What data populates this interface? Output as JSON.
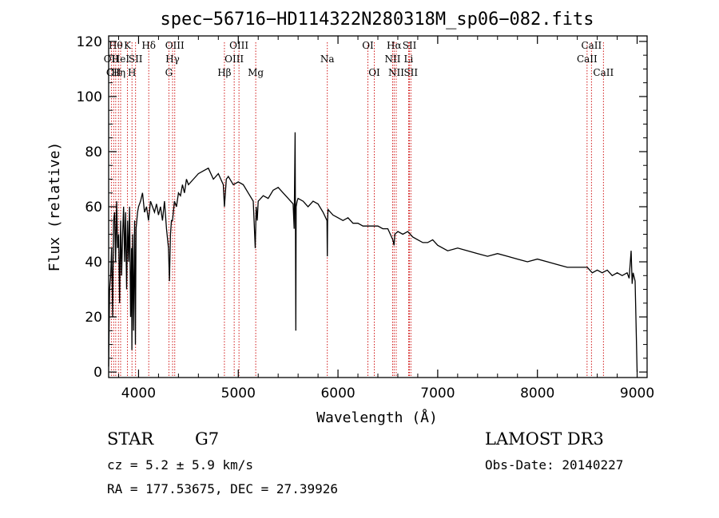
{
  "chart_data": {
    "type": "line",
    "title": "spec−56716−HD114322N280318M_sp06−082.fits",
    "xlabel": "Wavelength (Å)",
    "ylabel": "Flux (relative)",
    "xlim": [
      3700,
      9100
    ],
    "ylim": [
      -2,
      122
    ],
    "xticks": [
      4000,
      5000,
      6000,
      7000,
      8000,
      9000
    ],
    "yticks": [
      0,
      20,
      40,
      60,
      80,
      100,
      120
    ],
    "series": [
      {
        "name": "flux",
        "x": [
          3700,
          3710,
          3720,
          3730,
          3740,
          3750,
          3760,
          3770,
          3780,
          3790,
          3800,
          3810,
          3820,
          3830,
          3840,
          3850,
          3860,
          3870,
          3880,
          3890,
          3900,
          3910,
          3920,
          3930,
          3933,
          3940,
          3950,
          3960,
          3968,
          3975,
          3990,
          4000,
          4020,
          4040,
          4060,
          4080,
          4100,
          4120,
          4140,
          4160,
          4180,
          4200,
          4220,
          4240,
          4260,
          4280,
          4300,
          4310,
          4320,
          4330,
          4340,
          4360,
          4380,
          4400,
          4420,
          4440,
          4460,
          4480,
          4500,
          4550,
          4600,
          4650,
          4700,
          4750,
          4800,
          4850,
          4861,
          4880,
          4900,
          4950,
          5000,
          5050,
          5100,
          5150,
          5170,
          5180,
          5190,
          5200,
          5250,
          5300,
          5350,
          5400,
          5450,
          5500,
          5550,
          5560,
          5570,
          5577,
          5580,
          5590,
          5600,
          5650,
          5700,
          5750,
          5800,
          5850,
          5890,
          5893,
          5896,
          5900,
          5950,
          6000,
          6050,
          6100,
          6150,
          6200,
          6250,
          6300,
          6350,
          6400,
          6450,
          6500,
          6550,
          6563,
          6570,
          6600,
          6650,
          6700,
          6750,
          6800,
          6850,
          6900,
          6950,
          7000,
          7100,
          7200,
          7300,
          7400,
          7500,
          7600,
          7700,
          7800,
          7900,
          8000,
          8100,
          8200,
          8300,
          8400,
          8500,
          8550,
          8600,
          8650,
          8700,
          8750,
          8800,
          8850,
          8900,
          8920,
          8940,
          8950,
          8960,
          8980,
          9000
        ],
        "y": [
          2,
          30,
          35,
          45,
          20,
          55,
          58,
          40,
          62,
          45,
          50,
          25,
          55,
          35,
          50,
          60,
          40,
          58,
          30,
          55,
          40,
          60,
          20,
          45,
          8,
          50,
          15,
          55,
          10,
          52,
          58,
          60,
          62,
          65,
          58,
          60,
          55,
          62,
          60,
          58,
          61,
          57,
          60,
          55,
          62,
          52,
          45,
          33,
          50,
          55,
          55,
          62,
          60,
          65,
          64,
          68,
          65,
          70,
          68,
          70,
          72,
          73,
          74,
          70,
          72,
          68,
          60,
          70,
          71,
          68,
          69,
          68,
          65,
          62,
          45,
          60,
          55,
          62,
          64,
          63,
          66,
          67,
          65,
          63,
          61,
          52,
          87,
          15,
          60,
          62,
          63,
          62,
          60,
          62,
          61,
          58,
          55,
          42,
          55,
          59,
          57,
          56,
          55,
          56,
          54,
          54,
          53,
          53,
          53,
          53,
          52,
          52,
          48,
          46,
          50,
          51,
          50,
          51,
          49,
          48,
          47,
          47,
          48,
          46,
          44,
          45,
          44,
          43,
          42,
          43,
          42,
          41,
          40,
          41,
          40,
          39,
          38,
          38,
          38,
          36,
          37,
          36,
          37,
          35,
          36,
          35,
          36,
          34,
          44,
          32,
          36,
          33,
          0
        ]
      }
    ],
    "lines": [
      {
        "wl": 3727,
        "label": "OII",
        "row": 1
      },
      {
        "wl": 3750,
        "label": "CII",
        "row": 2
      },
      {
        "wl": 3771,
        "label": "Hθ",
        "row": 0
      },
      {
        "wl": 3798,
        "label": "Hη",
        "row": 2
      },
      {
        "wl": 3820,
        "label": "HeI",
        "row": 1
      },
      {
        "wl": 3889,
        "label": "K",
        "row": 0
      },
      {
        "wl": 3934,
        "label": "H",
        "row": 2
      },
      {
        "wl": 3970,
        "label": "SII",
        "row": 1
      },
      {
        "wl": 4102,
        "label": "Hδ",
        "row": 0
      },
      {
        "wl": 4304,
        "label": "G",
        "row": 2
      },
      {
        "wl": 4341,
        "label": "Hγ",
        "row": 1
      },
      {
        "wl": 4363,
        "label": "OIII",
        "row": 0
      },
      {
        "wl": 4861,
        "label": "Hβ",
        "row": 2
      },
      {
        "wl": 4959,
        "label": "OIII",
        "row": 1
      },
      {
        "wl": 5007,
        "label": "OIII",
        "row": 0
      },
      {
        "wl": 5175,
        "label": "Mg",
        "row": 2
      },
      {
        "wl": 5893,
        "label": "Na",
        "row": 1
      },
      {
        "wl": 6300,
        "label": "OI",
        "row": 0
      },
      {
        "wl": 6364,
        "label": "OI",
        "row": 2
      },
      {
        "wl": 6548,
        "label": "NII",
        "row": 1
      },
      {
        "wl": 6563,
        "label": "Hα",
        "row": 0
      },
      {
        "wl": 6584,
        "label": "NII",
        "row": 2
      },
      {
        "wl": 6708,
        "label": "Li",
        "row": 1
      },
      {
        "wl": 6717,
        "label": "SII",
        "row": 0
      },
      {
        "wl": 6731,
        "label": "SII",
        "row": 2
      },
      {
        "wl": 8498,
        "label": "CaII",
        "row": 1
      },
      {
        "wl": 8542,
        "label": "CaII",
        "row": 0
      },
      {
        "wl": 8662,
        "label": "CaII",
        "row": 2
      }
    ]
  },
  "info": {
    "class": "STAR",
    "subclass": "G7",
    "survey": "LAMOST DR3",
    "cz": "cz = 5.2 ± 5.9 km/s",
    "obs_date": "Obs-Date: 20140227",
    "radec": "RA = 177.53675, DEC =  27.39926"
  },
  "colors": {
    "line_marker": "#cc0000",
    "spectrum": "#000000"
  }
}
